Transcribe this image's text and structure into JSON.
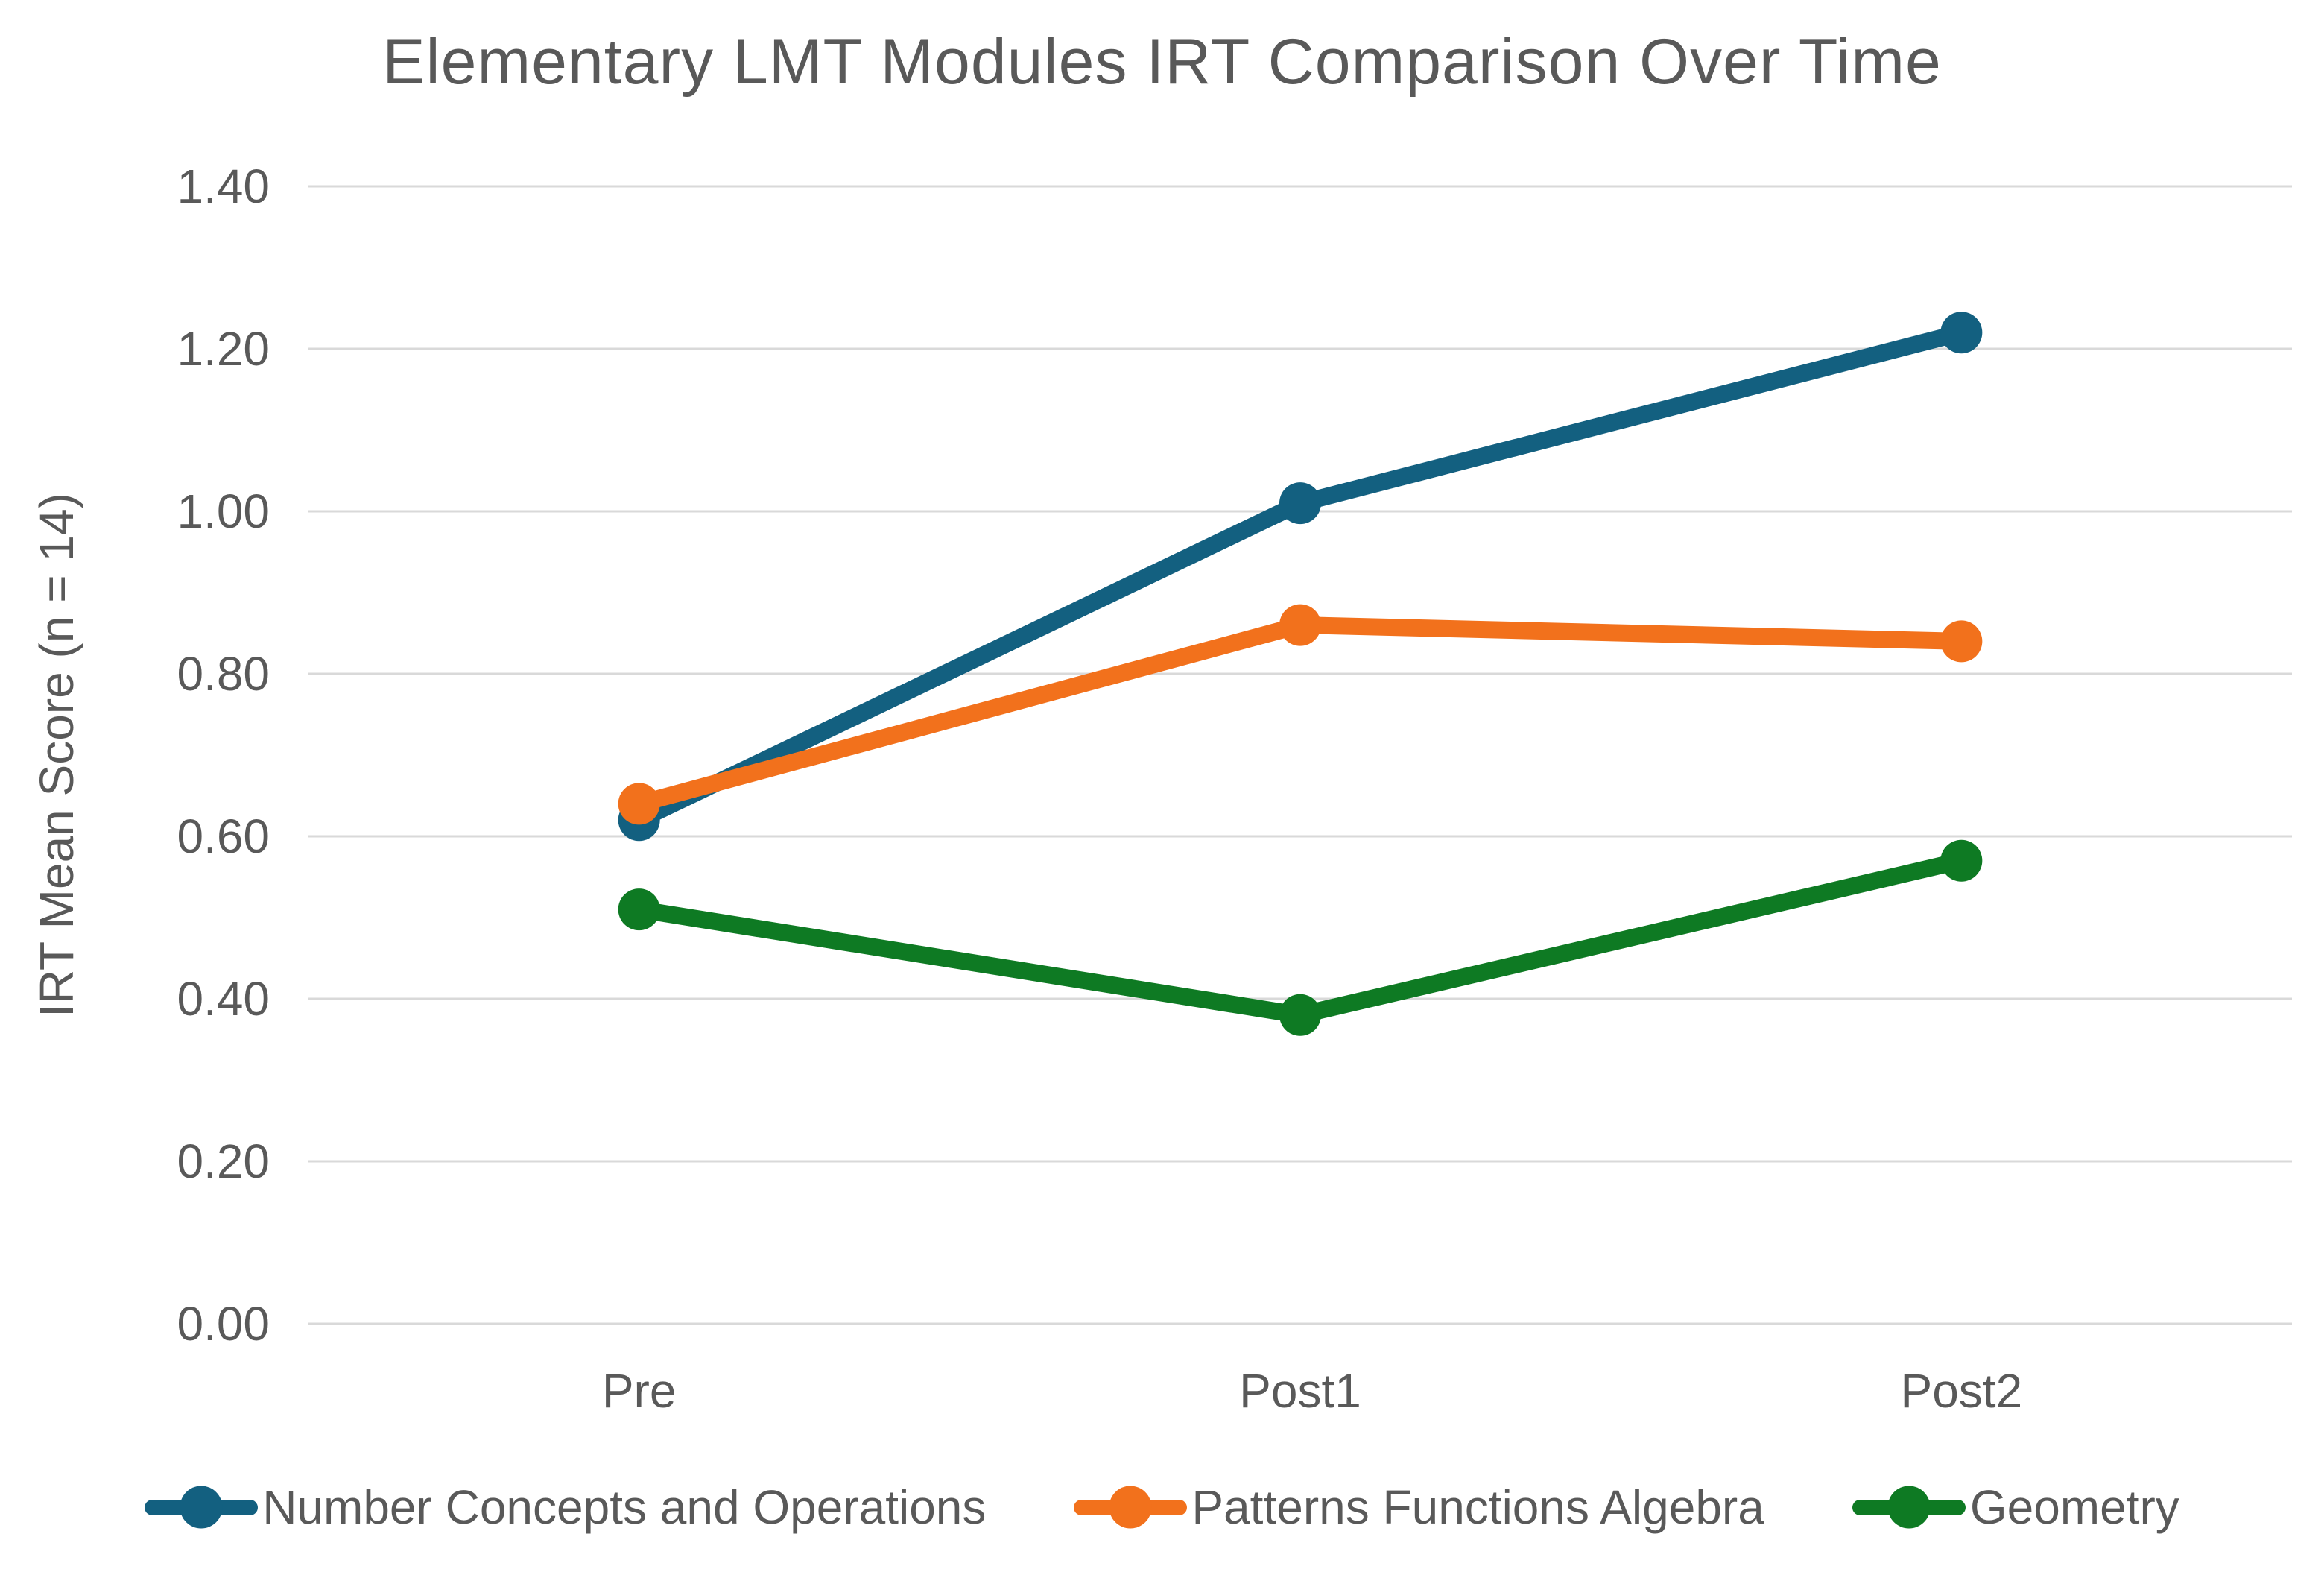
{
  "chart_data": {
    "type": "line",
    "title": "Elementary LMT Modules IRT Comparison Over Time",
    "xlabel": "",
    "ylabel": "IRT Mean Score (n = 14)",
    "categories": [
      "Pre",
      "Post1",
      "Post2"
    ],
    "series": [
      {
        "name": "Number Concepts and Operations",
        "color": "#136080",
        "values": [
          0.62,
          1.01,
          1.22
        ]
      },
      {
        "name": "Patterns Functions Algebra",
        "color": "#F2711C",
        "values": [
          0.64,
          0.86,
          0.84
        ]
      },
      {
        "name": "Geometry",
        "color": "#0E7A23",
        "values": [
          0.51,
          0.38,
          0.57
        ]
      }
    ],
    "ylim": [
      0,
      1.4
    ],
    "ytick_step": 0.2,
    "ytick_labels": [
      "0.00",
      "0.20",
      "0.40",
      "0.60",
      "0.80",
      "1.00",
      "1.20",
      "1.40"
    ],
    "grid": "horizontal",
    "legend_position": "bottom",
    "marker_style": "circle",
    "text_color": "#595959",
    "grid_color": "#D9D9D9",
    "background_color": "#FFFFFF"
  }
}
